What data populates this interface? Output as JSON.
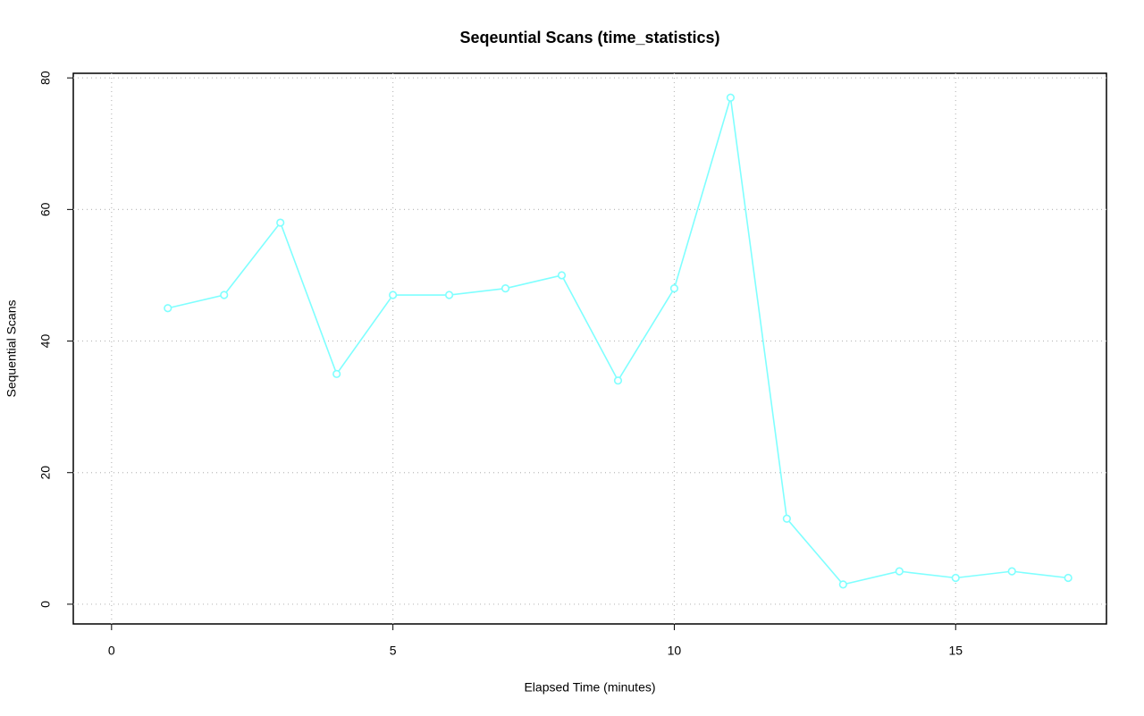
{
  "chart_data": {
    "type": "line",
    "title": "Seqeuntial Scans (time_statistics)",
    "x_label": "Elapsed Time (minutes)",
    "y_label": "Sequential Scans",
    "x": [
      1,
      2,
      3,
      4,
      5,
      6,
      7,
      8,
      9,
      10,
      11,
      12,
      13,
      14,
      15,
      16,
      17
    ],
    "series": [
      {
        "name": "Sequential Scans",
        "color": "#7fffff",
        "values": [
          45,
          47,
          58,
          35,
          47,
          47,
          48,
          50,
          34,
          48,
          77,
          13,
          3,
          5,
          4,
          5,
          4
        ]
      }
    ],
    "xlim": [
      -0.68,
      17.68
    ],
    "xticks": [
      0,
      5,
      10,
      15
    ],
    "ylim": [
      -3,
      80.7
    ],
    "yticks": [
      0,
      20,
      40,
      60,
      80
    ],
    "grid": true
  }
}
